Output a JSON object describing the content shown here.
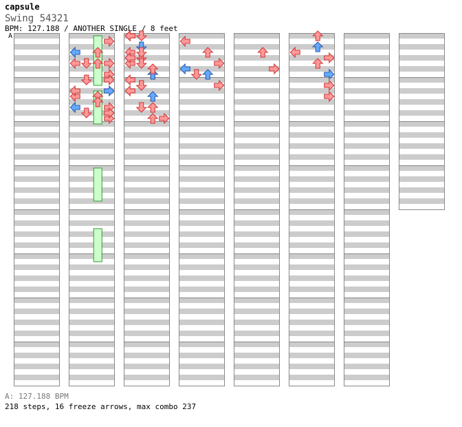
{
  "header": {
    "title": "capsule",
    "song": "Swing 54321",
    "info": "BPM: 127.188 / ANOTHER SINGLE / 8 feet"
  },
  "marker": "A",
  "footer": {
    "bpm_line": "A: 127.188 BPM",
    "stats": "218 steps, 16 freeze arrows, max combo 237"
  },
  "colors": {
    "arrow_red": "#ff9999",
    "arrow_red_stroke": "#cc3333",
    "arrow_blue": "#66aaff",
    "arrow_blue_stroke": "#2255aa",
    "arrow_green": "#55dd55",
    "freeze_fill": "#ccffcc",
    "freeze_stroke": "#339933",
    "stripe": "#cccccc"
  },
  "chart_data": {
    "type": "stepchart",
    "columns": 8,
    "measures_per_column": 8,
    "measures_total": 60,
    "lanes": [
      "left",
      "down",
      "up",
      "right"
    ],
    "notes": [
      [
        1,
        1,
        3,
        "r"
      ],
      [
        1,
        3,
        2,
        "r"
      ],
      [
        1,
        5,
        1,
        "r"
      ],
      [
        1,
        5,
        2,
        "r"
      ],
      [
        1,
        7,
        3,
        "r"
      ],
      [
        1,
        11,
        0,
        "r"
      ],
      [
        1,
        11,
        2,
        "r"
      ],
      [
        1,
        13,
        0,
        "b"
      ],
      [
        1,
        13,
        3,
        "r"
      ],
      [
        1,
        15,
        3,
        "r"
      ],
      [
        1,
        3,
        0,
        "b"
      ],
      [
        1,
        5,
        0,
        "r"
      ],
      [
        1,
        5,
        3,
        "r"
      ],
      [
        1,
        8,
        1,
        "r"
      ],
      [
        1,
        8,
        3,
        "r"
      ],
      [
        1,
        10,
        0,
        "r"
      ],
      [
        1,
        10,
        3,
        "b"
      ],
      [
        1,
        12,
        2,
        "r"
      ],
      [
        1,
        14,
        1,
        "r"
      ],
      [
        1,
        14,
        3,
        "r"
      ],
      [
        2,
        0,
        0,
        "r"
      ],
      [
        2,
        3,
        0,
        "r"
      ],
      [
        2,
        4,
        1,
        "r"
      ],
      [
        2,
        7,
        2,
        "r"
      ],
      [
        3,
        1,
        0,
        "r"
      ],
      [
        3,
        3,
        2,
        "r"
      ],
      [
        3,
        5,
        3,
        "r"
      ],
      [
        3,
        6,
        0,
        "b"
      ],
      [
        3,
        7,
        1,
        "r"
      ],
      [
        3,
        7,
        2,
        "b"
      ],
      [
        3,
        9,
        3,
        "r"
      ],
      [
        4,
        3,
        2,
        "r"
      ],
      [
        4,
        6,
        3,
        "r"
      ],
      [
        5,
        0,
        2,
        "r"
      ],
      [
        5,
        2,
        2,
        "b"
      ],
      [
        5,
        3,
        0,
        "r"
      ],
      [
        5,
        4,
        3,
        "r"
      ],
      [
        5,
        5,
        2,
        "r"
      ],
      [
        5,
        7,
        3,
        "b"
      ],
      [
        5,
        9,
        3,
        "r"
      ],
      [
        5,
        11,
        3,
        "r"
      ],
      [
        2,
        0,
        0,
        "r"
      ],
      [
        2,
        2,
        1,
        "b"
      ],
      [
        2,
        5,
        0,
        "r"
      ],
      [
        2,
        5,
        1,
        "r"
      ],
      [
        2,
        7,
        2,
        "b"
      ],
      [
        2,
        9,
        1,
        "r"
      ],
      [
        2,
        10,
        0,
        "r"
      ],
      [
        2,
        13,
        1,
        "r"
      ],
      [
        2,
        15,
        2,
        "r"
      ],
      [
        2,
        0,
        1,
        "r"
      ],
      [
        2,
        3,
        1,
        "r"
      ],
      [
        2,
        4,
        0,
        "r"
      ],
      [
        2,
        6,
        2,
        "r"
      ],
      [
        2,
        8,
        0,
        "r"
      ],
      [
        2,
        9,
        1,
        "r"
      ],
      [
        2,
        11,
        2,
        "b"
      ],
      [
        2,
        13,
        2,
        "r"
      ],
      [
        2,
        15,
        3,
        "r"
      ]
    ],
    "freezes": [
      [
        1,
        0,
        2,
        0,
        6
      ],
      [
        1,
        0,
        2,
        3,
        6
      ],
      [
        1,
        1,
        2,
        2,
        6
      ],
      [
        1,
        3,
        2,
        0,
        6
      ],
      [
        1,
        4,
        2,
        3,
        6
      ]
    ],
    "info": "notes: [column, measure, lane, color]; freezes: [column, measure, lane, start_row, length]"
  }
}
